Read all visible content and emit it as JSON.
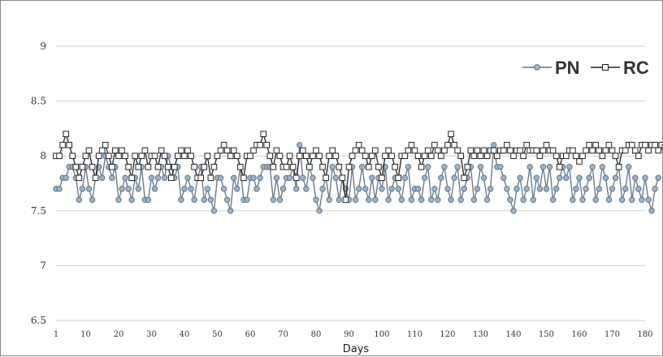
{
  "chart_data": {
    "type": "line",
    "title": "",
    "xlabel": "Days",
    "ylabel": "",
    "ylim": [
      6.5,
      9
    ],
    "xlim": [
      1,
      180
    ],
    "yticks": [
      "6.5",
      "7",
      "7.5",
      "8",
      "8.5",
      "9"
    ],
    "xticks": [
      "1",
      "10",
      "20",
      "30",
      "40",
      "50",
      "60",
      "70",
      "80",
      "90",
      "100",
      "110",
      "120",
      "130",
      "140",
      "150",
      "160",
      "170",
      "180"
    ],
    "grid": "horizontal",
    "legend_position": "top-right",
    "series": [
      {
        "name": "PN",
        "color": "#5e7487",
        "marker": "circle",
        "values": [
          7.7,
          7.7,
          7.8,
          7.8,
          7.9,
          7.9,
          7.8,
          7.6,
          7.7,
          7.9,
          7.7,
          7.6,
          7.8,
          7.9,
          7.8,
          8.0,
          7.9,
          7.8,
          7.9,
          7.6,
          7.7,
          7.8,
          7.7,
          7.6,
          7.8,
          7.7,
          7.9,
          7.6,
          7.6,
          7.8,
          7.7,
          7.8,
          7.9,
          7.8,
          8.0,
          7.9,
          7.8,
          7.9,
          7.6,
          7.7,
          7.8,
          7.7,
          7.6,
          7.8,
          7.9,
          7.6,
          7.7,
          7.6,
          7.5,
          7.8,
          7.8,
          7.7,
          7.6,
          7.5,
          7.8,
          7.7,
          7.9,
          7.6,
          7.6,
          7.8,
          7.8,
          7.7,
          7.8,
          7.9,
          7.9,
          7.9,
          7.6,
          7.8,
          7.6,
          7.7,
          7.8,
          7.8,
          7.9,
          7.7,
          8.1,
          7.8,
          7.7,
          7.9,
          7.8,
          7.6,
          7.5,
          7.7,
          7.8,
          7.6,
          7.9,
          7.8,
          7.6,
          7.8,
          7.7,
          7.6,
          7.9,
          7.6,
          7.7,
          7.9,
          7.7,
          7.6,
          7.8,
          7.6,
          7.8,
          7.7,
          7.9,
          7.6,
          7.7,
          7.8,
          7.7,
          7.6,
          7.8,
          7.9,
          7.6,
          7.7,
          7.7,
          7.6,
          7.8,
          7.9,
          7.6,
          7.7,
          7.6,
          7.8,
          7.9,
          7.7,
          7.6,
          7.8,
          7.9,
          7.6,
          7.7,
          7.8,
          7.9,
          7.6,
          7.7,
          7.9,
          7.8,
          7.6,
          7.7,
          8.1,
          7.9,
          7.9,
          7.8,
          7.7,
          7.6,
          7.5,
          7.7,
          7.8,
          7.6,
          7.7,
          7.9,
          7.6,
          7.8,
          7.7,
          7.9,
          7.7,
          7.9,
          7.6,
          7.7,
          7.8,
          7.9,
          7.8,
          7.9,
          7.6,
          7.7,
          7.8,
          7.6,
          7.7,
          7.8,
          7.9,
          7.6,
          7.7,
          7.9,
          7.8,
          7.6,
          7.7,
          7.8,
          7.9,
          7.6,
          7.7,
          7.9,
          7.6,
          7.8,
          7.7,
          7.6,
          7.8,
          7.6,
          7.5,
          7.7,
          7.8
        ]
      },
      {
        "name": "RC",
        "color": "#222222",
        "marker": "square",
        "values": [
          8.0,
          8.0,
          8.1,
          8.2,
          8.1,
          8.0,
          7.9,
          7.8,
          7.9,
          8.0,
          8.05,
          7.9,
          7.8,
          8.0,
          8.05,
          8.1,
          8.0,
          7.9,
          8.05,
          8.0,
          8.05,
          8.0,
          7.9,
          7.8,
          8.0,
          7.9,
          8.0,
          8.05,
          7.9,
          8.0,
          8.0,
          7.9,
          8.05,
          8.0,
          7.9,
          7.8,
          7.9,
          8.0,
          8.05,
          8.0,
          8.05,
          8.0,
          7.9,
          7.8,
          7.8,
          7.9,
          8.0,
          7.8,
          7.9,
          8.0,
          8.05,
          8.1,
          8.05,
          8.0,
          8.05,
          8.0,
          7.9,
          7.8,
          8.0,
          8.0,
          8.05,
          8.1,
          8.1,
          8.2,
          8.1,
          8.0,
          7.9,
          8.05,
          8.0,
          7.9,
          7.9,
          8.0,
          7.9,
          7.8,
          8.0,
          8.05,
          8.0,
          7.9,
          8.0,
          8.05,
          8.0,
          7.9,
          7.8,
          8.0,
          8.05,
          8.0,
          7.9,
          7.8,
          7.6,
          7.9,
          8.0,
          8.05,
          8.1,
          8.05,
          8.0,
          7.9,
          8.0,
          8.05,
          7.9,
          7.8,
          8.0,
          8.05,
          8.0,
          7.9,
          7.8,
          8.0,
          8.0,
          8.05,
          8.1,
          8.05,
          8.0,
          7.9,
          8.0,
          8.05,
          8.0,
          8.1,
          8.05,
          8.0,
          8.05,
          8.1,
          8.2,
          8.1,
          8.05,
          8.0,
          7.8,
          7.9,
          8.05,
          8.0,
          8.05,
          8.0,
          8.05,
          8.0,
          8.05,
          8.05,
          8.0,
          8.05,
          8.05,
          8.1,
          8.05,
          8.0,
          8.05,
          8.05,
          8.0,
          8.1,
          8.05,
          8.05,
          8.05,
          8.0,
          8.05,
          8.1,
          8.05,
          8.05,
          8.0,
          7.9,
          8.0,
          8.0,
          8.05,
          8.05,
          8.0,
          7.95,
          8.0,
          8.05,
          8.1,
          8.05,
          8.1,
          8.05,
          8.0,
          8.05,
          8.1,
          8.05,
          8.0,
          7.9,
          8.05,
          8.05,
          8.1,
          8.1,
          8.05,
          8.0,
          8.1,
          8.1,
          8.05,
          8.1,
          8.1,
          8.05,
          8.1,
          8.08
        ]
      }
    ]
  }
}
